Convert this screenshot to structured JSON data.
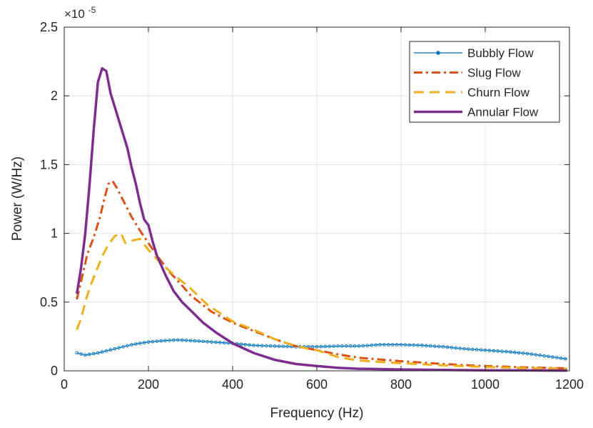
{
  "chart_data": {
    "type": "line",
    "xlabel": "Frequency (Hz)",
    "ylabel": "Power (W/Hz)",
    "y_exponent_label": "×10",
    "y_exponent_power": "-5",
    "xlim": [
      0,
      1200
    ],
    "ylim": [
      0,
      2.5
    ],
    "x_ticks": [
      0,
      200,
      400,
      600,
      800,
      1000,
      1200
    ],
    "x_tick_labels": [
      "0",
      "200",
      "400",
      "600",
      "800",
      "1000",
      "1200"
    ],
    "y_ticks": [
      0,
      0.5,
      1,
      1.5,
      2,
      2.5
    ],
    "y_tick_labels": [
      "0",
      "0.5",
      "1",
      "1.5",
      "2",
      "2.5"
    ],
    "grid": true,
    "legend_position": "top-right",
    "series": [
      {
        "name": "Bubbly Flow",
        "color": "#0072BD",
        "style": "solid-dots",
        "x": [
          30,
          50,
          80,
          120,
          160,
          200,
          240,
          270,
          300,
          350,
          400,
          450,
          500,
          550,
          600,
          650,
          700,
          750,
          800,
          850,
          900,
          950,
          1000,
          1050,
          1100,
          1150,
          1195
        ],
        "y": [
          0.13,
          0.115,
          0.13,
          0.16,
          0.19,
          0.21,
          0.22,
          0.225,
          0.22,
          0.21,
          0.2,
          0.185,
          0.18,
          0.175,
          0.175,
          0.18,
          0.18,
          0.19,
          0.19,
          0.185,
          0.175,
          0.16,
          0.15,
          0.14,
          0.125,
          0.105,
          0.085
        ]
      },
      {
        "name": "Slug Flow",
        "color": "#D95319",
        "style": "dashdot",
        "x": [
          30,
          40,
          55,
          70,
          85,
          95,
          105,
          115,
          125,
          140,
          160,
          180,
          200,
          220,
          250,
          280,
          300,
          350,
          400,
          450,
          500,
          550,
          600,
          650,
          700,
          800,
          900,
          1000,
          1100,
          1195
        ],
        "y": [
          0.52,
          0.65,
          0.85,
          0.97,
          1.12,
          1.25,
          1.36,
          1.38,
          1.33,
          1.24,
          1.12,
          1.02,
          0.93,
          0.84,
          0.72,
          0.62,
          0.55,
          0.43,
          0.35,
          0.29,
          0.23,
          0.18,
          0.15,
          0.12,
          0.095,
          0.07,
          0.05,
          0.035,
          0.025,
          0.018
        ]
      },
      {
        "name": "Churn Flow",
        "color": "#EDB120",
        "style": "dashed",
        "x": [
          30,
          40,
          50,
          60,
          75,
          90,
          105,
          120,
          135,
          145,
          165,
          180,
          200,
          230,
          260,
          300,
          340,
          400,
          450,
          500,
          550,
          600,
          650,
          700,
          800,
          900,
          1000,
          1100,
          1195
        ],
        "y": [
          0.3,
          0.38,
          0.5,
          0.6,
          0.72,
          0.83,
          0.92,
          0.98,
          1.0,
          0.93,
          0.95,
          0.96,
          0.88,
          0.78,
          0.7,
          0.6,
          0.48,
          0.36,
          0.3,
          0.23,
          0.18,
          0.15,
          0.1,
          0.075,
          0.055,
          0.04,
          0.028,
          0.02,
          0.015
        ]
      },
      {
        "name": "Annular Flow",
        "color": "#7E2F8E",
        "style": "solid",
        "x": [
          30,
          40,
          50,
          60,
          70,
          80,
          90,
          100,
          110,
          120,
          130,
          140,
          150,
          160,
          170,
          180,
          190,
          200,
          210,
          220,
          240,
          260,
          280,
          300,
          330,
          360,
          400,
          450,
          500,
          550,
          600,
          650,
          700,
          800,
          900,
          1000,
          1100,
          1195
        ],
        "y": [
          0.56,
          0.75,
          1.0,
          1.35,
          1.75,
          2.1,
          2.2,
          2.18,
          2.02,
          1.92,
          1.82,
          1.72,
          1.62,
          1.48,
          1.36,
          1.22,
          1.1,
          1.06,
          0.94,
          0.84,
          0.7,
          0.58,
          0.5,
          0.44,
          0.35,
          0.28,
          0.2,
          0.13,
          0.08,
          0.05,
          0.035,
          0.022,
          0.015,
          0.01,
          0.006,
          0.004,
          0.003,
          0.002
        ]
      }
    ]
  }
}
